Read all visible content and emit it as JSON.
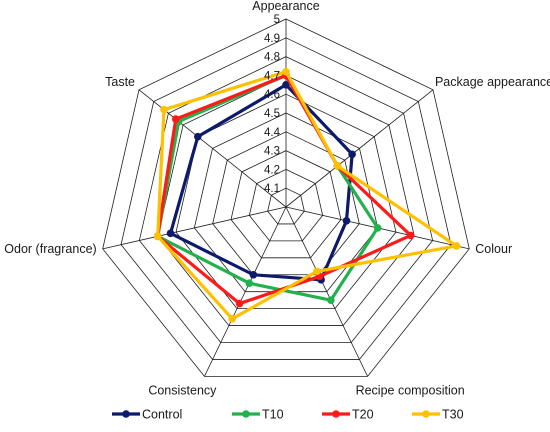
{
  "chart_data": {
    "type": "radar",
    "categories": [
      "Appearance",
      "Package appearance",
      "Colour",
      "Recipe composition",
      "Consistency",
      "Odor (fragrance)",
      "Taste"
    ],
    "rlim": [
      4,
      5
    ],
    "ticks": [
      "4.1",
      "4.2",
      "4.3",
      "4.4",
      "4.5",
      "4.6",
      "4.7",
      "4.8",
      "4.9",
      "5"
    ],
    "grid": true,
    "legend_position": "bottom",
    "series": [
      {
        "name": "Control",
        "color": "#0d1a6b",
        "values": [
          4.65,
          4.45,
          4.33,
          4.43,
          4.4,
          4.63,
          4.6
        ]
      },
      {
        "name": "T10",
        "color": "#22b14c",
        "values": [
          4.7,
          4.35,
          4.5,
          4.55,
          4.45,
          4.7,
          4.73
        ]
      },
      {
        "name": "T20",
        "color": "#ff1a1a",
        "values": [
          4.7,
          4.35,
          4.68,
          4.41,
          4.57,
          4.7,
          4.75
        ]
      },
      {
        "name": "T30",
        "color": "#ffc000",
        "values": [
          4.72,
          4.35,
          4.93,
          4.38,
          4.66,
          4.7,
          4.83
        ]
      }
    ]
  }
}
